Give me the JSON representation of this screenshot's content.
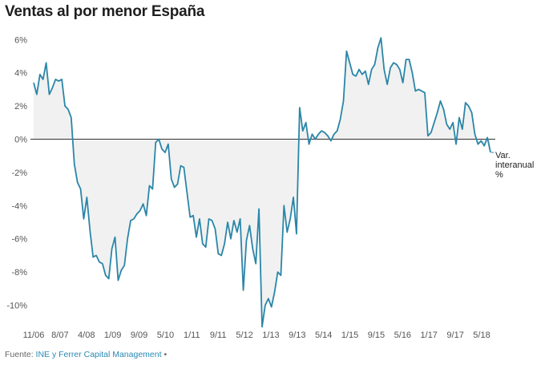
{
  "title": "Ventas al por menor España",
  "footer": {
    "prefix": "Fuente:",
    "source": "INE y Ferrer Capital Management",
    "bullet": "•"
  },
  "colors": {
    "line": "#2a86a8",
    "area": "#f1f1f1",
    "zero_line": "#333333",
    "grid": "#dddddd"
  },
  "chart_data": {
    "type": "area",
    "title": "Ventas al por menor España",
    "series": [
      {
        "name": "Var. interanual %",
        "x_start": "2006-11",
        "frequency": "monthly",
        "values": [
          3.4,
          2.7,
          3.9,
          3.6,
          4.6,
          2.7,
          3.1,
          3.6,
          3.5,
          3.6,
          2.0,
          1.8,
          1.3,
          -1.5,
          -2.6,
          -3.0,
          -4.8,
          -3.5,
          -5.5,
          -7.1,
          -7.0,
          -7.4,
          -7.5,
          -8.2,
          -8.4,
          -6.6,
          -5.9,
          -8.5,
          -7.9,
          -7.6,
          -6.0,
          -4.9,
          -4.8,
          -4.5,
          -4.3,
          -3.9,
          -4.6,
          -2.8,
          -3.0,
          -0.2,
          0.0,
          -0.6,
          -0.8,
          -0.3,
          -2.4,
          -2.9,
          -2.7,
          -1.6,
          -1.7,
          -3.2,
          -4.7,
          -4.6,
          -5.9,
          -4.8,
          -6.3,
          -6.5,
          -4.8,
          -4.9,
          -5.4,
          -6.9,
          -7.0,
          -6.3,
          -5.0,
          -6.0,
          -4.9,
          -5.6,
          -4.8,
          -9.1,
          -6.1,
          -5.2,
          -6.6,
          -7.5,
          -4.2,
          -11.3,
          -10.0,
          -9.6,
          -10.1,
          -9.2,
          -8.0,
          -8.2,
          -4.0,
          -5.6,
          -4.8,
          -3.5,
          -5.7,
          1.9,
          0.5,
          1.0,
          -0.3,
          0.3,
          0.0,
          0.3,
          0.5,
          0.4,
          0.2,
          -0.1,
          0.3,
          0.5,
          1.2,
          2.3,
          5.3,
          4.6,
          3.9,
          3.8,
          4.2,
          3.9,
          4.1,
          3.3,
          4.2,
          4.5,
          5.5,
          6.1,
          4.2,
          3.3,
          4.3,
          4.6,
          4.5,
          4.2,
          3.4,
          4.8,
          4.8,
          4.0,
          2.9,
          3.0,
          2.9,
          2.8,
          0.2,
          0.4,
          1.0,
          1.6,
          2.3,
          1.8,
          0.9,
          0.6,
          1.0,
          -0.3,
          1.3,
          0.6,
          2.2,
          2.0,
          1.6,
          0.3,
          -0.3,
          -0.1,
          -0.4,
          0.1,
          -0.8
        ]
      }
    ],
    "x_tick_labels": [
      "11/06",
      "8/07",
      "4/08",
      "1/09",
      "9/09",
      "5/10",
      "1/11",
      "9/11",
      "5/12",
      "1/13",
      "9/13",
      "5/14",
      "1/15",
      "9/15",
      "5/16",
      "1/17",
      "9/17",
      "5/18"
    ],
    "y_tick_labels": [
      "6%",
      "4%",
      "2%",
      "0%",
      "-2%",
      "-4%",
      "-6%",
      "-8%",
      "-10%"
    ],
    "y_ticks": [
      6,
      4,
      2,
      0,
      -2,
      -4,
      -6,
      -8,
      -10
    ],
    "ylim": [
      -11.5,
      6.2
    ],
    "series_label_lines": [
      "Var.",
      "interanual",
      "%"
    ]
  }
}
